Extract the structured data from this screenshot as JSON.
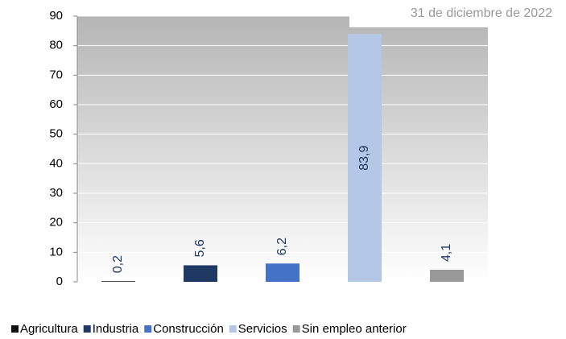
{
  "chart_data": {
    "type": "bar",
    "subtitle": "31 de diciembre de 2022",
    "categories": [
      "Agricultura",
      "Industria",
      "Construcción",
      "Servicios",
      "Sin empleo anterior"
    ],
    "values": [
      0.2,
      5.6,
      6.2,
      83.9,
      4.1
    ],
    "value_labels": [
      "0,2",
      "5,6",
      "6,2",
      "83,9",
      "4,1"
    ],
    "colors": [
      "#111111",
      "#1f3864",
      "#4472c4",
      "#b4c7e7",
      "#999999"
    ],
    "ylim": [
      0,
      90
    ],
    "yticks": [
      0,
      10,
      20,
      30,
      40,
      50,
      60,
      70,
      80,
      90
    ],
    "grid": true
  }
}
